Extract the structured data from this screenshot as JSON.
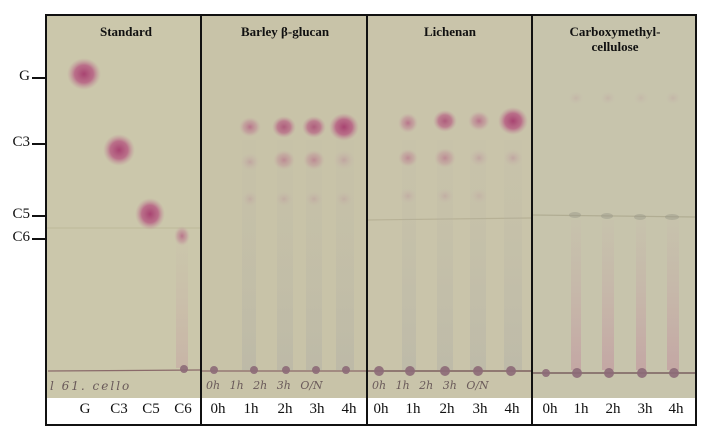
{
  "panels": {
    "standard": "Standard",
    "barley": "Barley β-glucan",
    "lichenan": "Lichenan",
    "cmc_line1": "Carboxymethyl-",
    "cmc_line2": "cellulose"
  },
  "markers": {
    "g": "G",
    "c3": "C3",
    "c5": "C5",
    "c6": "C6"
  },
  "lanes": {
    "standard": [
      "G",
      "C3",
      "C5",
      "C6"
    ],
    "barley": [
      "0h",
      "1h",
      "2h",
      "3h",
      "4h"
    ],
    "lichenan": [
      "0h",
      "1h",
      "2h",
      "3h",
      "4h"
    ],
    "cmc": [
      "0h",
      "1h",
      "2h",
      "3h",
      "4h"
    ]
  },
  "handwriting": {
    "standard": "l  61.   cello",
    "barley": "0h  1h  2h  3h  O/N",
    "lichenan": "0h  1h  2h  3h  O/N"
  },
  "colors": {
    "plate": "#c9c4a8",
    "spot": "#b0507a",
    "frame": "#111111"
  }
}
